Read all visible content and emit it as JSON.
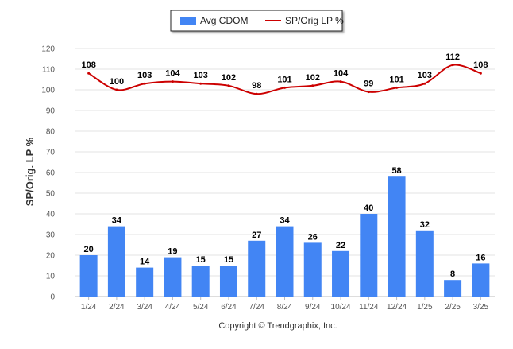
{
  "chart_data": {
    "type": "bar",
    "categories": [
      "1/24",
      "2/24",
      "3/24",
      "4/24",
      "5/24",
      "6/24",
      "7/24",
      "8/24",
      "9/24",
      "10/24",
      "11/24",
      "12/24",
      "1/25",
      "2/25",
      "3/25"
    ],
    "series": [
      {
        "name": "Avg CDOM",
        "type": "bar",
        "color": "#4285f4",
        "values": [
          20,
          34,
          14,
          19,
          15,
          15,
          27,
          34,
          26,
          22,
          40,
          58,
          32,
          8,
          16
        ]
      },
      {
        "name": "SP/Orig LP %",
        "type": "line",
        "color": "#cc0000",
        "values": [
          108,
          100,
          103,
          104,
          103,
          102,
          98,
          101,
          102,
          104,
          99,
          101,
          103,
          112,
          108
        ]
      }
    ],
    "ylabel": "SP/Orig. LP %",
    "xlabel": "",
    "ylim": [
      0,
      120
    ],
    "yticks": [
      0,
      10,
      20,
      30,
      40,
      50,
      60,
      70,
      80,
      90,
      100,
      110,
      120
    ],
    "grid": true,
    "legend_position": "top-center",
    "data_labels": true,
    "credit": "Copyright © Trendgraphix, Inc."
  }
}
